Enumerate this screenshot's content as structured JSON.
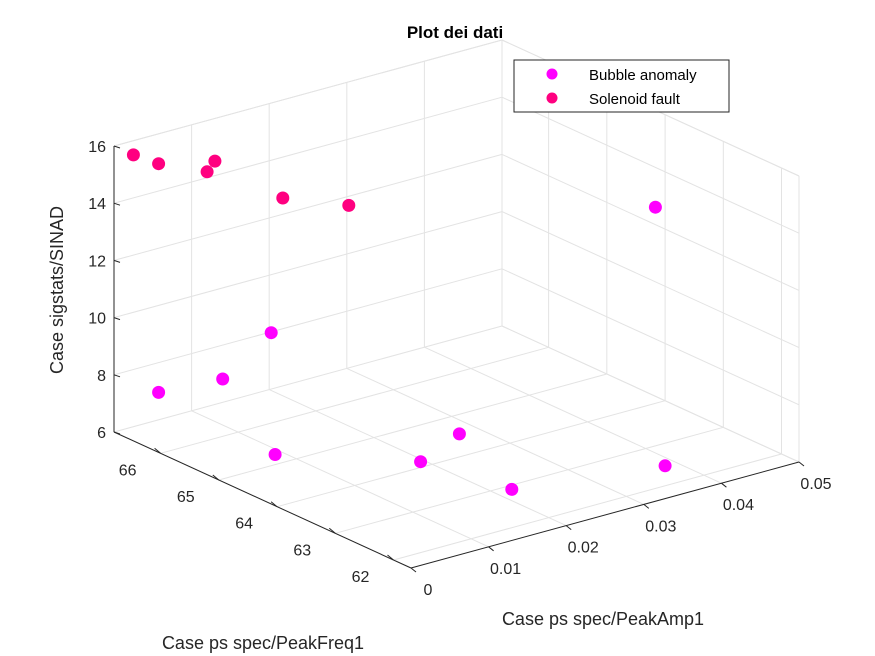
{
  "chart_data": {
    "type": "scatter",
    "title": "Plot dei dati",
    "xlabel": "Case ps spec/PeakAmp1",
    "ylabel": "Case ps spec/PeakFreq1",
    "zlabel": "Case sigstats/SINAD",
    "xlim": [
      0,
      0.05
    ],
    "ylim": [
      61.7,
      66.8
    ],
    "zlim": [
      6,
      16
    ],
    "x_ticks": [
      0,
      0.01,
      0.02,
      0.03,
      0.04,
      0.05
    ],
    "y_ticks": [
      62,
      63,
      64,
      65,
      66
    ],
    "z_ticks": [
      6,
      8,
      10,
      12,
      14,
      16
    ],
    "grid": true,
    "legend_position": "top-right",
    "series": [
      {
        "name": "Bubble anomaly",
        "color": "#ff00ff",
        "points": [
          {
            "x": 0.0005,
            "y": 66.1,
            "z": 8.0
          },
          {
            "x": 0.005,
            "y": 64.7,
            "z": 6.8
          },
          {
            "x": 0.005,
            "y": 65.6,
            "z": 8.6
          },
          {
            "x": 0.006,
            "y": 64.9,
            "z": 10.8
          },
          {
            "x": 0.017,
            "y": 63.8,
            "z": 6.5
          },
          {
            "x": 0.022,
            "y": 63.8,
            "z": 7.1
          },
          {
            "x": 0.022,
            "y": 62.9,
            "z": 6.0
          },
          {
            "x": 0.035,
            "y": 62.0,
            "z": 6.7
          },
          {
            "x": 0.045,
            "y": 63.5,
            "z": 13.6
          }
        ]
      },
      {
        "name": "Solenoid fault",
        "color": "#ff0080",
        "points": [
          {
            "x": 0.001,
            "y": 66.6,
            "z": 15.8
          },
          {
            "x": 0.002,
            "y": 66.3,
            "z": 15.7
          },
          {
            "x": 0.006,
            "y": 66.0,
            "z": 15.4
          },
          {
            "x": 0.007,
            "y": 66.0,
            "z": 15.7
          },
          {
            "x": 0.009,
            "y": 65.1,
            "z": 15.1
          },
          {
            "x": 0.01,
            "y": 64.1,
            "z": 15.7
          }
        ]
      }
    ]
  }
}
